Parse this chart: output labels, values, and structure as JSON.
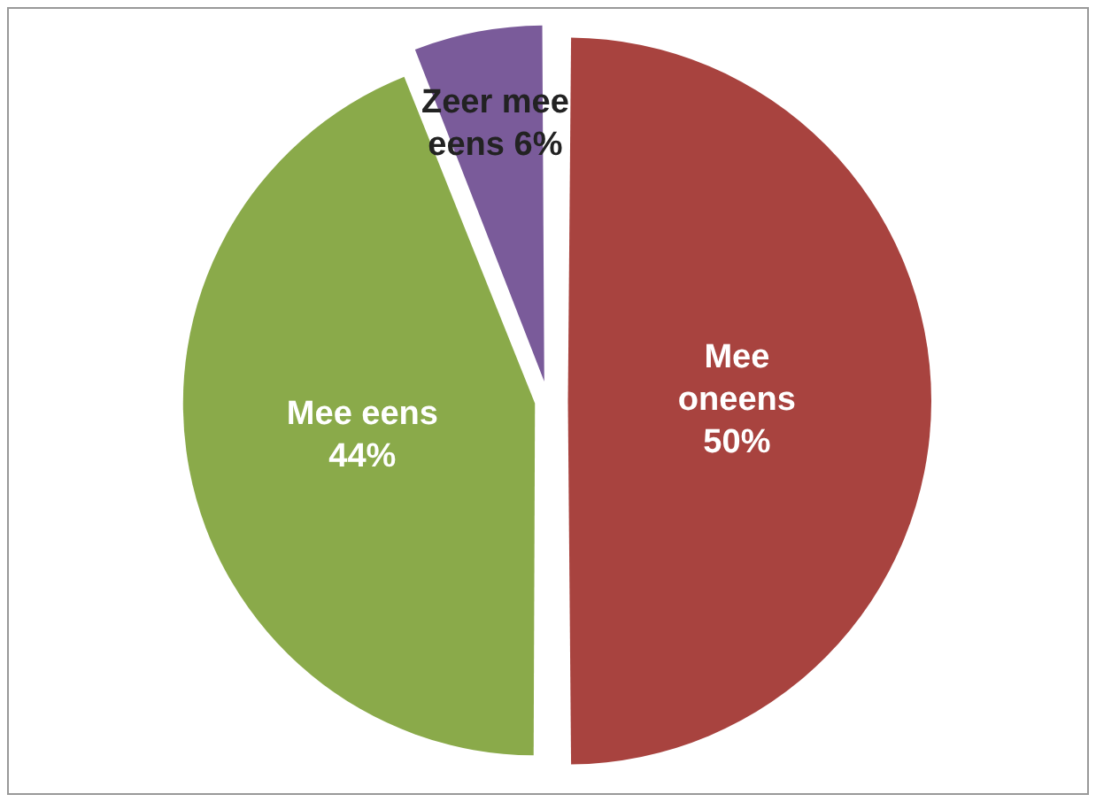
{
  "chart_data": {
    "type": "pie",
    "categories": [
      "Mee oneens",
      "Mee eens",
      "Zeer mee eens"
    ],
    "values": [
      50,
      44,
      6
    ],
    "value_labels": [
      "50%",
      "44%",
      "6%"
    ],
    "colors": [
      "#a8433f",
      "#8aaa4a",
      "#7a5b9a"
    ],
    "legend": false
  }
}
